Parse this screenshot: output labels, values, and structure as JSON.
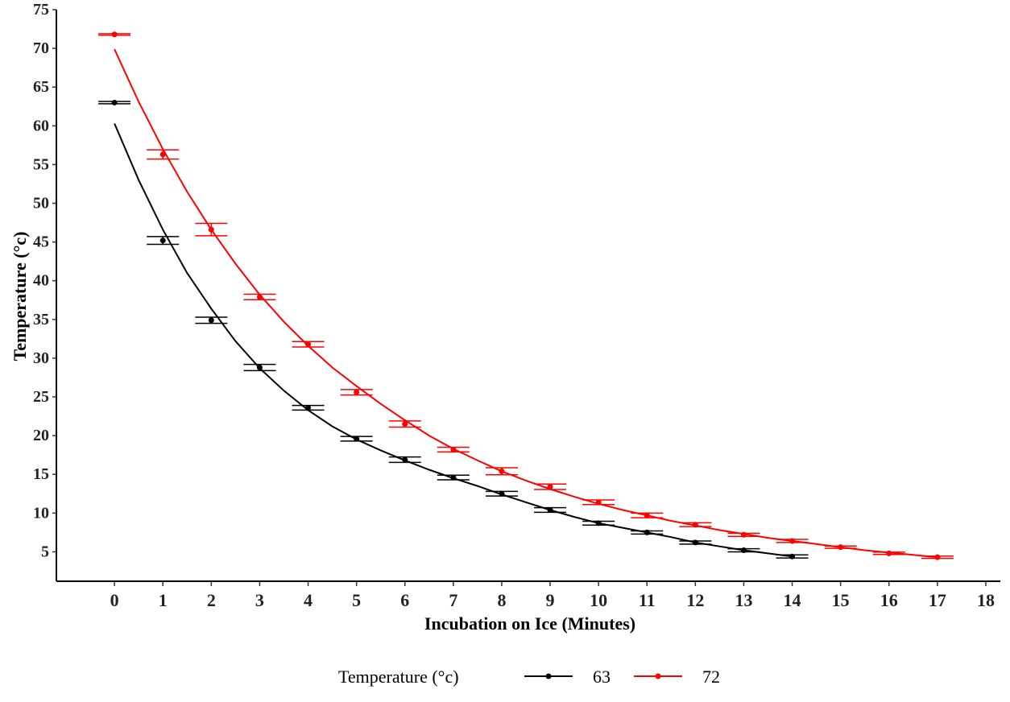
{
  "chart_data": {
    "type": "line",
    "title": "",
    "xlabel": "Incubation on Ice (Minutes)",
    "ylabel": "Temperature (°c)",
    "xlim": [
      -1.2,
      18.3
    ],
    "ylim": [
      1.2,
      75
    ],
    "x_ticks": [
      0,
      1,
      2,
      3,
      4,
      5,
      6,
      7,
      8,
      9,
      10,
      11,
      12,
      13,
      14,
      15,
      16,
      17,
      18
    ],
    "x_tick_labels": [
      "0",
      "1",
      "2",
      "3",
      "4",
      "5",
      "6",
      "7",
      "8",
      "9",
      "10",
      "11",
      "12",
      "13",
      "14",
      "15",
      "16",
      "17",
      "18"
    ],
    "y_ticks": [
      5,
      10,
      15,
      20,
      25,
      30,
      35,
      40,
      45,
      50,
      55,
      60,
      65,
      70,
      75
    ],
    "y_tick_labels": [
      "5",
      "10",
      "15",
      "20",
      "25",
      "30",
      "35",
      "40",
      "45",
      "50",
      "55",
      "60",
      "65",
      "70",
      "75"
    ],
    "grid": false,
    "legend": {
      "title": "Temperature (°c)",
      "position": "bottom"
    },
    "series": [
      {
        "name": "63",
        "color": "#000000",
        "points": [
          {
            "x": 0,
            "y": 63.0,
            "err": 0.15
          },
          {
            "x": 1,
            "y": 45.2,
            "err": 0.5
          },
          {
            "x": 2,
            "y": 34.9,
            "err": 0.4
          },
          {
            "x": 3,
            "y": 28.8,
            "err": 0.4
          },
          {
            "x": 4,
            "y": 23.6,
            "err": 0.3
          },
          {
            "x": 5,
            "y": 19.6,
            "err": 0.3
          },
          {
            "x": 6,
            "y": 16.9,
            "err": 0.35
          },
          {
            "x": 7,
            "y": 14.6,
            "err": 0.3
          },
          {
            "x": 8,
            "y": 12.5,
            "err": 0.3
          },
          {
            "x": 9,
            "y": 10.4,
            "err": 0.3
          },
          {
            "x": 10,
            "y": 8.7,
            "err": 0.25
          },
          {
            "x": 11,
            "y": 7.5,
            "err": 0.2
          },
          {
            "x": 12,
            "y": 6.2,
            "err": 0.2
          },
          {
            "x": 13,
            "y": 5.2,
            "err": 0.2
          },
          {
            "x": 14,
            "y": 4.4,
            "err": 0.2
          }
        ],
        "fit": [
          [
            0,
            60.3
          ],
          [
            0.5,
            53.0
          ],
          [
            1,
            46.6
          ],
          [
            1.5,
            41.0
          ],
          [
            2,
            36.4
          ],
          [
            2.5,
            32.2
          ],
          [
            3,
            28.7
          ],
          [
            3.5,
            25.8
          ],
          [
            4,
            23.3
          ],
          [
            4.5,
            21.2
          ],
          [
            5,
            19.5
          ],
          [
            5.5,
            18.1
          ],
          [
            6,
            16.8
          ],
          [
            6.5,
            15.6
          ],
          [
            7,
            14.5
          ],
          [
            7.5,
            13.5
          ],
          [
            8,
            12.4
          ],
          [
            8.5,
            11.4
          ],
          [
            9,
            10.4
          ],
          [
            9.5,
            9.5
          ],
          [
            10,
            8.7
          ],
          [
            10.5,
            8.1
          ],
          [
            11,
            7.5
          ],
          [
            11.5,
            6.9
          ],
          [
            12,
            6.2
          ],
          [
            12.5,
            5.7
          ],
          [
            13,
            5.2
          ],
          [
            13.5,
            4.8
          ],
          [
            14,
            4.4
          ]
        ]
      },
      {
        "name": "72",
        "color": "#ff0000",
        "points": [
          {
            "x": 0,
            "y": 71.8,
            "err": 0.1
          },
          {
            "x": 1,
            "y": 56.3,
            "err": 0.6
          },
          {
            "x": 2,
            "y": 46.6,
            "err": 0.8
          },
          {
            "x": 3,
            "y": 37.9,
            "err": 0.35
          },
          {
            "x": 4,
            "y": 31.8,
            "err": 0.35
          },
          {
            "x": 5,
            "y": 25.6,
            "err": 0.35
          },
          {
            "x": 6,
            "y": 21.5,
            "err": 0.4
          },
          {
            "x": 7,
            "y": 18.2,
            "err": 0.3
          },
          {
            "x": 8,
            "y": 15.4,
            "err": 0.45
          },
          {
            "x": 9,
            "y": 13.4,
            "err": 0.35
          },
          {
            "x": 10,
            "y": 11.4,
            "err": 0.3
          },
          {
            "x": 11,
            "y": 9.7,
            "err": 0.3
          },
          {
            "x": 12,
            "y": 8.5,
            "err": 0.25
          },
          {
            "x": 13,
            "y": 7.2,
            "err": 0.2
          },
          {
            "x": 14,
            "y": 6.4,
            "err": 0.2
          },
          {
            "x": 15,
            "y": 5.6,
            "err": 0.15
          },
          {
            "x": 16,
            "y": 4.8,
            "err": 0.15
          },
          {
            "x": 17,
            "y": 4.3,
            "err": 0.15
          }
        ],
        "fit": [
          [
            0,
            69.9
          ],
          [
            0.5,
            63.1
          ],
          [
            1,
            57.0
          ],
          [
            1.5,
            51.5
          ],
          [
            2,
            46.6
          ],
          [
            2.5,
            42.2
          ],
          [
            3,
            38.2
          ],
          [
            3.5,
            34.7
          ],
          [
            4,
            31.6
          ],
          [
            4.5,
            28.8
          ],
          [
            5,
            26.4
          ],
          [
            5.5,
            24.1
          ],
          [
            6,
            22.0
          ],
          [
            6.5,
            20.0
          ],
          [
            7,
            18.3
          ],
          [
            7.5,
            16.8
          ],
          [
            8,
            15.4
          ],
          [
            8.5,
            14.2
          ],
          [
            9,
            13.1
          ],
          [
            9.5,
            12.1
          ],
          [
            10,
            11.2
          ],
          [
            10.5,
            10.4
          ],
          [
            11,
            9.7
          ],
          [
            11.5,
            9.0
          ],
          [
            12,
            8.4
          ],
          [
            12.5,
            7.8
          ],
          [
            13,
            7.3
          ],
          [
            13.5,
            6.8
          ],
          [
            14,
            6.4
          ],
          [
            14.5,
            6.0
          ],
          [
            15,
            5.6
          ],
          [
            15.5,
            5.2
          ],
          [
            16,
            4.9
          ],
          [
            16.5,
            4.6
          ],
          [
            17,
            4.3
          ]
        ]
      }
    ]
  }
}
